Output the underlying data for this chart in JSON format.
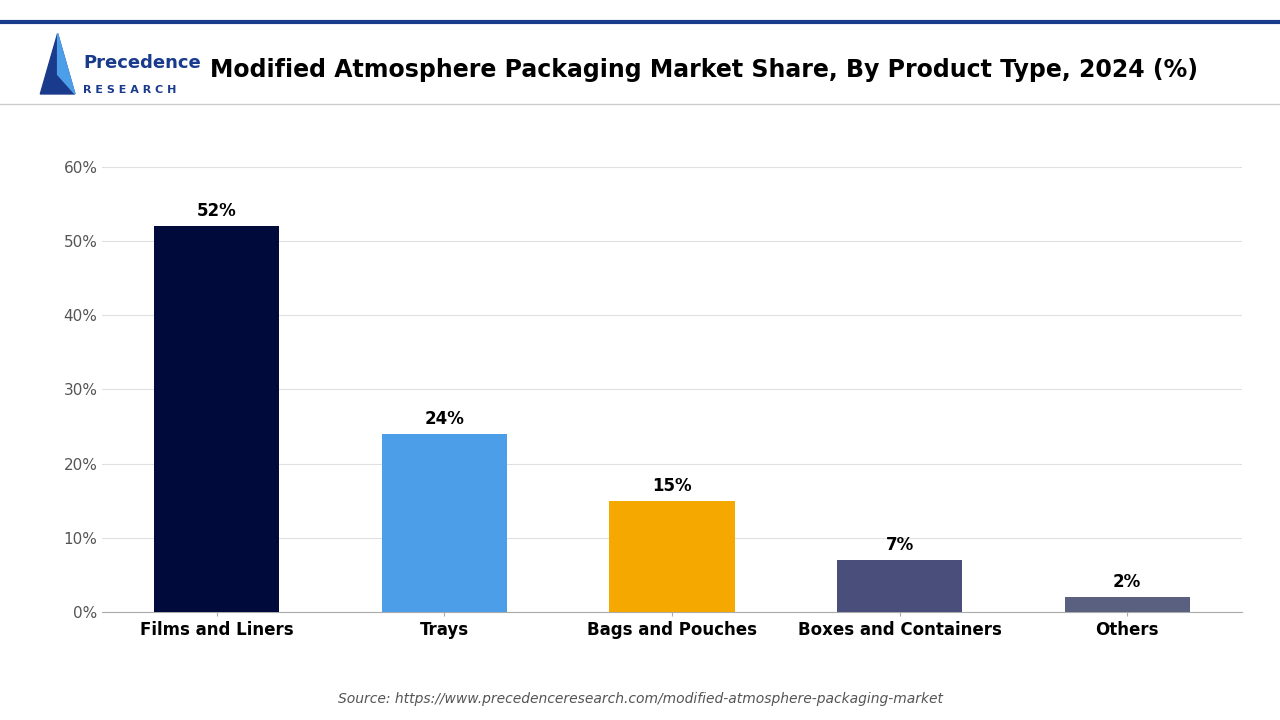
{
  "title": "Modified Atmosphere Packaging Market Share, By Product Type, 2024 (%)",
  "categories": [
    "Films and Liners",
    "Trays",
    "Bags and Pouches",
    "Boxes and Containers",
    "Others"
  ],
  "values": [
    52,
    24,
    15,
    7,
    2
  ],
  "bar_colors": [
    "#000B3C",
    "#4D9EE8",
    "#F5A800",
    "#4A4E7A",
    "#5A6080"
  ],
  "labels": [
    "52%",
    "24%",
    "15%",
    "7%",
    "2%"
  ],
  "ylim": [
    0,
    65
  ],
  "yticks": [
    0,
    10,
    20,
    30,
    40,
    50,
    60
  ],
  "ytick_labels": [
    "0%",
    "10%",
    "20%",
    "30%",
    "40%",
    "50%",
    "60%"
  ],
  "source_text": "Source: https://www.precedenceresearch.com/modified-atmosphere-packaging-market",
  "background_color": "#FFFFFF",
  "grid_color": "#E0E0E0",
  "title_color": "#000000",
  "label_fontsize": 12,
  "title_fontsize": 17,
  "tick_fontsize": 11,
  "source_fontsize": 10,
  "bar_width": 0.55,
  "logo_precedence_color": "#1A3A8C",
  "logo_research_text": "R E S E A R C H",
  "logo_precedence_text": "Precedence"
}
